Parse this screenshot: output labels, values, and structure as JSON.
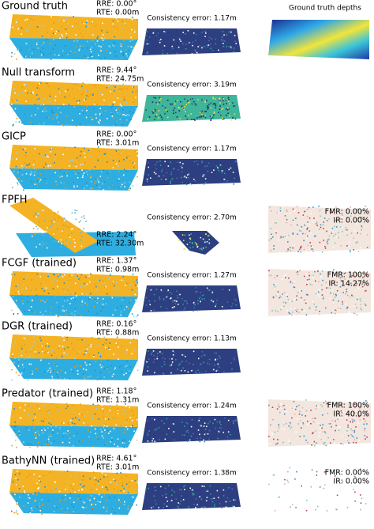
{
  "rows": [
    {
      "method": "Ground truth",
      "rre": "RRE: 0.00°",
      "rte": "RTE: 0.00m",
      "consistency": "Consistency error: 1.17m",
      "depths": "Ground truth depths"
    },
    {
      "method": "Null transform",
      "rre": "RRE: 9.44°",
      "rte": "RTE: 24.75m",
      "consistency": "Consistency error: 3.19m"
    },
    {
      "method": "GICP",
      "rre": "RRE: 0.00°",
      "rte": "RTE: 3.01m",
      "consistency": "Consistency error: 1.17m"
    },
    {
      "method": "FPFH",
      "rre": "RRE: 2.24°",
      "rte": "RTE: 32.30m",
      "consistency": "Consistency error: 2.70m",
      "fmr": "FMR: 0.00%",
      "ir": "IR: 0.00%"
    },
    {
      "method": "FCGF (trained)",
      "rre": "RRE: 1.37°",
      "rte": "RTE: 0.98m",
      "consistency": "Consistency error: 1.27m",
      "fmr": "FMR: 100%",
      "ir": "IR: 14.27%"
    },
    {
      "method": "DGR (trained)",
      "rre": "RRE: 0.16°",
      "rte": "RTE: 0.88m",
      "consistency": "Consistency error: 1.13m"
    },
    {
      "method": "Predator (trained)",
      "rre": "RRE: 1.18°",
      "rte": "RTE: 1.31m",
      "consistency": "Consistency error: 1.24m",
      "fmr": "FMR: 100%",
      "ir": "IR: 40.0%"
    },
    {
      "method": "BathyNN (trained)",
      "rre": "RRE: 4.61°",
      "rte": "RTE: 3.01m",
      "consistency": "Consistency error: 1.38m",
      "fmr": "FMR: 0.00%",
      "ir": "IR: 0.00%"
    }
  ]
}
